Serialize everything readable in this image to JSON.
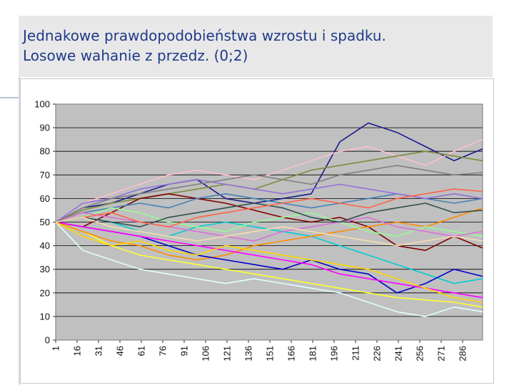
{
  "slide": {
    "title_line1": "Jednakowe prawdopodobieństwa wzrostu i spadku.",
    "title_line2": "Losowe wahanie z przedz. (0;2)"
  },
  "chart_data": {
    "type": "line",
    "title": "",
    "xlabel": "",
    "ylabel": "",
    "ylim": [
      0,
      100
    ],
    "xlim": [
      1,
      300
    ],
    "grid": true,
    "legend": "none",
    "plot_background": "#c0c0c0",
    "y_ticks": [
      "0",
      "10",
      "20",
      "30",
      "40",
      "50",
      "60",
      "70",
      "80",
      "90",
      "100"
    ],
    "x_ticks": [
      "1",
      "16",
      "31",
      "46",
      "61",
      "76",
      "91",
      "106",
      "121",
      "136",
      "151",
      "166",
      "181",
      "196",
      "211",
      "226",
      "241",
      "256",
      "271",
      "286"
    ],
    "x_tick_values": [
      1,
      16,
      31,
      46,
      61,
      76,
      91,
      106,
      121,
      136,
      151,
      166,
      181,
      196,
      211,
      226,
      241,
      256,
      271,
      286
    ],
    "series": [
      {
        "color": "#1a1a8c",
        "x": [
          1,
          20,
          40,
          60,
          80,
          100,
          120,
          140,
          160,
          180,
          200,
          220,
          240,
          260,
          280,
          300
        ],
        "values": [
          50,
          56,
          58,
          62,
          66,
          68,
          60,
          58,
          60,
          62,
          84,
          92,
          88,
          82,
          76,
          81
        ]
      },
      {
        "color": "#ffc0cb",
        "x": [
          1,
          20,
          40,
          60,
          80,
          100,
          120,
          140,
          160,
          180,
          200,
          220,
          240,
          260,
          280,
          300
        ],
        "values": [
          50,
          58,
          62,
          66,
          70,
          72,
          70,
          68,
          72,
          76,
          80,
          82,
          78,
          74,
          80,
          85
        ]
      },
      {
        "color": "#7b8c3a",
        "x": [
          1,
          20,
          40,
          60,
          80,
          100,
          120,
          140,
          160,
          180,
          200,
          220,
          240,
          260,
          280,
          300
        ],
        "values": [
          50,
          55,
          58,
          60,
          62,
          64,
          66,
          64,
          68,
          72,
          74,
          76,
          78,
          80,
          78,
          76
        ]
      },
      {
        "color": "#800000",
        "x": [
          1,
          20,
          40,
          60,
          80,
          100,
          120,
          140,
          160,
          180,
          200,
          220,
          240,
          260,
          280,
          300
        ],
        "values": [
          50,
          48,
          54,
          60,
          62,
          60,
          58,
          55,
          52,
          50,
          52,
          48,
          40,
          38,
          44,
          39
        ]
      },
      {
        "color": "#00ced1",
        "x": [
          1,
          20,
          40,
          60,
          80,
          100,
          120,
          140,
          160,
          180,
          200,
          220,
          240,
          260,
          280,
          300
        ],
        "values": [
          50,
          52,
          50,
          46,
          44,
          48,
          50,
          48,
          46,
          44,
          40,
          36,
          32,
          28,
          24,
          26
        ]
      },
      {
        "color": "#ffff33",
        "x": [
          1,
          20,
          40,
          60,
          80,
          100,
          120,
          140,
          160,
          180,
          200,
          220,
          240,
          260,
          280,
          300
        ],
        "values": [
          50,
          46,
          40,
          36,
          34,
          32,
          30,
          28,
          26,
          24,
          22,
          20,
          18,
          17,
          16,
          14
        ]
      },
      {
        "color": "#e0ffff",
        "x": [
          1,
          20,
          40,
          60,
          80,
          100,
          120,
          140,
          160,
          180,
          200,
          220,
          240,
          260,
          280,
          300
        ],
        "values": [
          50,
          38,
          34,
          30,
          28,
          26,
          24,
          26,
          24,
          22,
          20,
          16,
          12,
          10,
          14,
          12
        ]
      },
      {
        "color": "#4682b4",
        "x": [
          1,
          20,
          40,
          60,
          80,
          100,
          120,
          140,
          160,
          180,
          200,
          220,
          240,
          260,
          280,
          300
        ],
        "values": [
          50,
          54,
          56,
          58,
          56,
          60,
          62,
          60,
          58,
          56,
          58,
          60,
          62,
          60,
          58,
          60
        ]
      },
      {
        "color": "#ff8c00",
        "x": [
          1,
          20,
          40,
          60,
          80,
          100,
          120,
          140,
          160,
          180,
          200,
          220,
          240,
          260,
          280,
          300
        ],
        "values": [
          50,
          46,
          42,
          40,
          36,
          34,
          36,
          40,
          42,
          44,
          46,
          48,
          50,
          48,
          52,
          56
        ]
      },
      {
        "color": "#0000cd",
        "x": [
          1,
          20,
          40,
          60,
          80,
          100,
          120,
          140,
          160,
          180,
          200,
          220,
          240,
          260,
          280,
          300
        ],
        "values": [
          50,
          48,
          46,
          44,
          40,
          36,
          34,
          32,
          30,
          34,
          30,
          28,
          20,
          24,
          30,
          27
        ]
      },
      {
        "color": "#98fb98",
        "x": [
          1,
          20,
          40,
          60,
          80,
          100,
          120,
          140,
          160,
          180,
          200,
          220,
          240,
          260,
          280,
          300
        ],
        "values": [
          50,
          52,
          56,
          54,
          50,
          48,
          46,
          50,
          52,
          54,
          50,
          46,
          44,
          48,
          46,
          44
        ]
      },
      {
        "color": "#da70d6",
        "x": [
          1,
          20,
          40,
          60,
          80,
          100,
          120,
          140,
          160,
          180,
          200,
          220,
          240,
          260,
          280,
          300
        ],
        "values": [
          50,
          54,
          52,
          50,
          48,
          46,
          44,
          42,
          46,
          48,
          50,
          52,
          48,
          46,
          44,
          46
        ]
      },
      {
        "color": "#2f4f4f",
        "x": [
          1,
          20,
          40,
          60,
          80,
          100,
          120,
          140,
          160,
          180,
          200,
          220,
          240,
          260,
          280,
          300
        ],
        "values": [
          50,
          52,
          50,
          48,
          52,
          54,
          56,
          58,
          56,
          52,
          50,
          54,
          56,
          58,
          54,
          55
        ]
      },
      {
        "color": "#9370db",
        "x": [
          1,
          20,
          40,
          60,
          80,
          100,
          120,
          140,
          160,
          180,
          200,
          220,
          240,
          260,
          280,
          300
        ],
        "values": [
          50,
          58,
          60,
          64,
          66,
          68,
          66,
          64,
          62,
          64,
          66,
          64,
          62,
          60,
          62,
          60
        ]
      },
      {
        "color": "#ff6347",
        "x": [
          1,
          20,
          40,
          60,
          80,
          100,
          120,
          140,
          160,
          180,
          200,
          220,
          240,
          260,
          280,
          300
        ],
        "values": [
          50,
          52,
          54,
          50,
          48,
          52,
          54,
          56,
          58,
          60,
          58,
          56,
          60,
          62,
          64,
          63
        ]
      },
      {
        "color": "#808080",
        "x": [
          1,
          20,
          40,
          60,
          80,
          100,
          120,
          140,
          160,
          180,
          200,
          220,
          240,
          260,
          280,
          300
        ],
        "values": [
          50,
          56,
          60,
          62,
          64,
          66,
          68,
          70,
          68,
          66,
          70,
          72,
          74,
          72,
          70,
          71
        ]
      },
      {
        "color": "#ff00ff",
        "x": [
          1,
          20,
          40,
          60,
          80,
          100,
          120,
          140,
          160,
          180,
          200,
          220,
          240,
          260,
          280,
          300
        ],
        "values": [
          50,
          48,
          46,
          44,
          42,
          40,
          38,
          36,
          34,
          32,
          28,
          26,
          24,
          22,
          20,
          18
        ]
      },
      {
        "color": "#ffd700",
        "x": [
          1,
          20,
          40,
          60,
          80,
          100,
          120,
          140,
          160,
          180,
          200,
          220,
          240,
          260,
          280,
          300
        ],
        "values": [
          50,
          44,
          40,
          42,
          38,
          36,
          40,
          38,
          36,
          34,
          32,
          30,
          26,
          22,
          18,
          16
        ]
      },
      {
        "color": "#f5deb3",
        "x": [
          1,
          20,
          40,
          60,
          80,
          100,
          120,
          140,
          160,
          180,
          200,
          220,
          240,
          260,
          280,
          300
        ],
        "values": [
          50,
          52,
          48,
          46,
          44,
          42,
          44,
          46,
          48,
          46,
          44,
          42,
          40,
          42,
          44,
          42
        ]
      }
    ]
  }
}
